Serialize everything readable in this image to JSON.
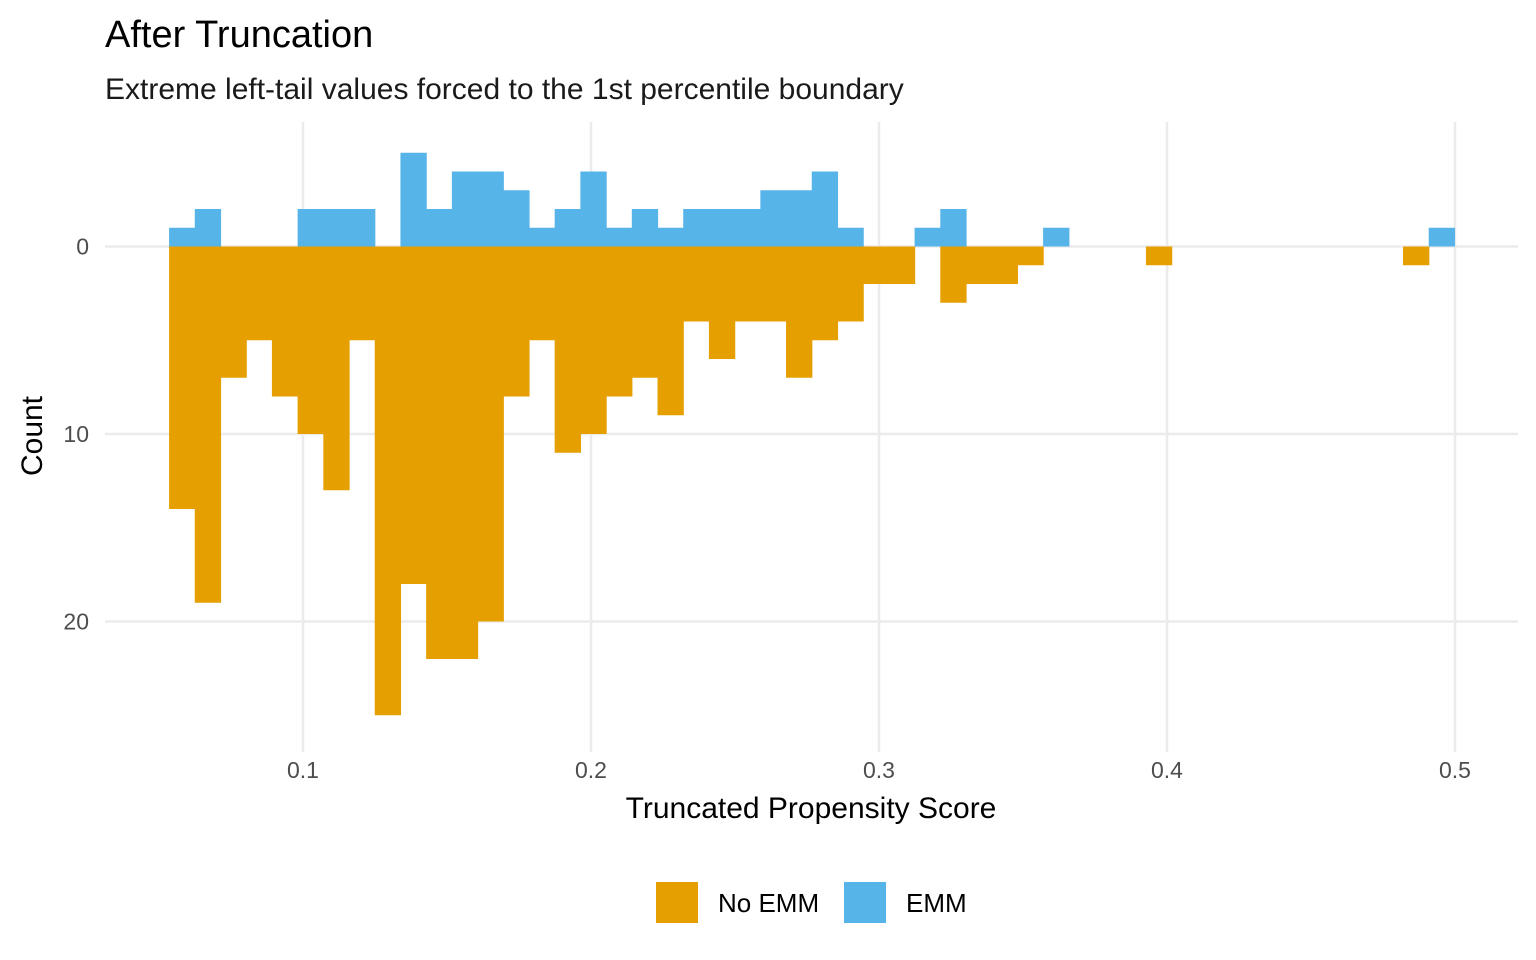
{
  "chart_data": {
    "type": "bar",
    "subtype": "mirrored-histogram",
    "title": "After Truncation",
    "subtitle": "Extreme left-tail values forced to the 1st percentile boundary",
    "xlabel": "Truncated Propensity Score",
    "ylabel": "Count",
    "xlim": [
      0.03,
      0.52
    ],
    "ylim": [
      -26.5,
      6.5
    ],
    "x_ticks": [
      0.1,
      0.2,
      0.3,
      0.4,
      0.5
    ],
    "x_tick_labels": [
      "0.1",
      "0.2",
      "0.3",
      "0.4",
      "0.5"
    ],
    "y_ticks": [
      0,
      -10,
      -20
    ],
    "y_tick_labels": [
      "0",
      "10",
      "20"
    ],
    "grid": true,
    "legend_position": "bottom",
    "bins": {
      "start": 0.0535,
      "width": 0.008926,
      "count": 50
    },
    "series": [
      {
        "name": "No EMM",
        "color": "#E69F00",
        "direction": "down",
        "values": [
          14,
          19,
          7,
          5,
          8,
          10,
          13,
          5,
          25,
          18,
          22,
          22,
          20,
          8,
          5,
          11,
          10,
          8,
          7,
          9,
          4,
          6,
          4,
          4,
          7,
          5,
          4,
          2,
          2,
          0,
          3,
          2,
          2,
          1,
          0,
          0,
          0,
          0,
          1,
          0,
          0,
          0,
          0,
          0,
          0,
          0,
          0,
          0,
          1,
          0
        ]
      },
      {
        "name": "EMM",
        "color": "#56B4E9",
        "direction": "up",
        "values": [
          1,
          2,
          0,
          0,
          0,
          2,
          2,
          2,
          0,
          5,
          2,
          4,
          4,
          3,
          1,
          2,
          4,
          1,
          2,
          1,
          2,
          2,
          2,
          3,
          3,
          4,
          1,
          0,
          0,
          1,
          2,
          0,
          0,
          0,
          1,
          0,
          0,
          0,
          0,
          0,
          0,
          0,
          0,
          0,
          0,
          0,
          0,
          0,
          0,
          1
        ]
      }
    ]
  }
}
